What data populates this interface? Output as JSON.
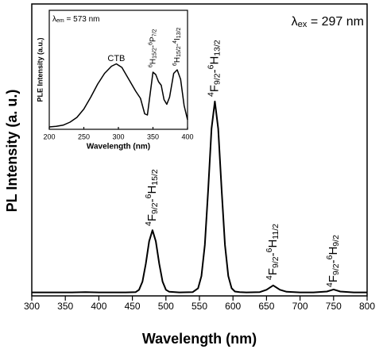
{
  "chart_data": [
    {
      "type": "line",
      "xlabel": "Wavelength (nm)",
      "ylabel": "PL Intensity (a. u.)",
      "x": [
        300,
        320,
        340,
        360,
        380,
        400,
        420,
        440,
        455,
        460,
        465,
        470,
        475,
        480,
        485,
        490,
        495,
        500,
        505,
        520,
        540,
        548,
        553,
        558,
        563,
        568,
        573,
        578,
        583,
        588,
        593,
        598,
        603,
        610,
        620,
        640,
        650,
        660,
        670,
        680,
        700,
        720,
        740,
        750,
        760,
        780,
        800
      ],
      "values": [
        0.012,
        0.012,
        0.012,
        0.012,
        0.013,
        0.012,
        0.012,
        0.012,
        0.013,
        0.021,
        0.049,
        0.11,
        0.187,
        0.225,
        0.187,
        0.11,
        0.049,
        0.021,
        0.014,
        0.012,
        0.013,
        0.026,
        0.068,
        0.175,
        0.364,
        0.573,
        0.666,
        0.573,
        0.364,
        0.175,
        0.068,
        0.026,
        0.015,
        0.013,
        0.012,
        0.013,
        0.021,
        0.036,
        0.021,
        0.014,
        0.012,
        0.012,
        0.015,
        0.022,
        0.015,
        0.012,
        0.012
      ],
      "color": "#000000",
      "xlim": [
        300,
        800
      ],
      "xticks": [
        300,
        350,
        400,
        450,
        500,
        550,
        600,
        650,
        700,
        750,
        800
      ],
      "ylim": [
        0,
        1
      ],
      "label": [
        "λ",
        "ex",
        " = 297 nm"
      ],
      "annotations": [
        [
          "4",
          "F",
          "9/2",
          "-",
          "6",
          "H",
          "15/2"
        ],
        [
          "4",
          "F",
          "9/2",
          "-",
          "6",
          "H",
          "13/2"
        ],
        [
          "4",
          "F",
          "9/2",
          "-",
          "6",
          "H",
          "11/2"
        ],
        [
          "4",
          "F",
          "9/2",
          "-",
          "6",
          "H",
          "9/2"
        ]
      ]
    },
    {
      "type": "line",
      "xlabel": "Wavelength (nm)",
      "ylabel": "PLE Intensity (a.u.)",
      "x": [
        200,
        210,
        220,
        230,
        240,
        250,
        260,
        270,
        280,
        290,
        297,
        305,
        315,
        325,
        332,
        338,
        342,
        346,
        350,
        354,
        358,
        362,
        366,
        370,
        374,
        380,
        385,
        390,
        395,
        400
      ],
      "values": [
        0.02,
        0.025,
        0.035,
        0.06,
        0.1,
        0.17,
        0.27,
        0.38,
        0.47,
        0.53,
        0.55,
        0.52,
        0.42,
        0.32,
        0.26,
        0.13,
        0.12,
        0.3,
        0.48,
        0.46,
        0.4,
        0.37,
        0.25,
        0.21,
        0.27,
        0.47,
        0.5,
        0.42,
        0.2,
        0.08
      ],
      "color": "#000000",
      "xlim": [
        200,
        400
      ],
      "xticks": [
        200,
        250,
        300,
        350,
        400
      ],
      "ylim": [
        0,
        1
      ],
      "label": [
        "λ",
        "em",
        " = 573 nm"
      ],
      "annotations": [
        [
          "CTB"
        ],
        [
          "6",
          "H",
          "15/2",
          "-",
          "6",
          "P",
          "7/2"
        ],
        [
          "6",
          "H",
          "15/2",
          "-",
          "4",
          "I",
          "13/2"
        ]
      ]
    }
  ]
}
